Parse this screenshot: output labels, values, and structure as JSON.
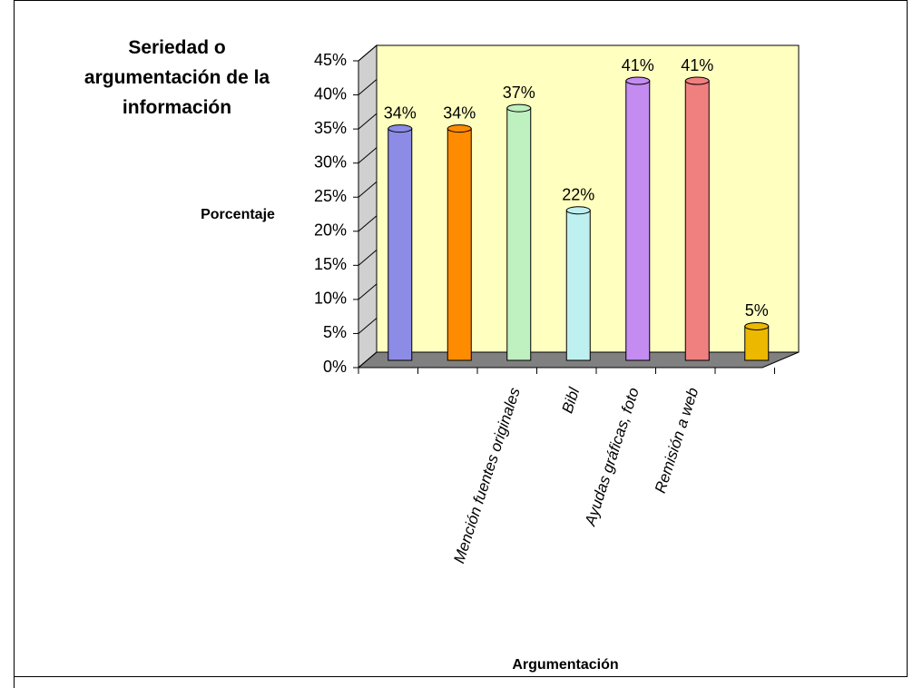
{
  "chart_data": {
    "type": "bar",
    "title": "Seriedad o argumentación de la información",
    "x_label": "Argumentación",
    "y_label": "Porcentaje",
    "categories": [
      null,
      null,
      "Mención fuentes originales",
      "Bibl",
      "Ayudas gráficas, foto",
      "Remisión a web",
      null
    ],
    "values": [
      34,
      34,
      37,
      22,
      41,
      41,
      5
    ],
    "value_labels": [
      "34%",
      "34%",
      "37%",
      "22%",
      "41%",
      "41%",
      "5%"
    ],
    "colors": [
      "#8c8ce6",
      "#ff8c00",
      "#bff0c0",
      "#bff0f0",
      "#c48cf0",
      "#f08080",
      "#ecb800"
    ],
    "ylim": [
      0,
      45
    ],
    "yticks": [
      {
        "value": 0,
        "label": "0%"
      },
      {
        "value": 5,
        "label": "5%"
      },
      {
        "value": 10,
        "label": "10%"
      },
      {
        "value": 15,
        "label": "15%"
      },
      {
        "value": 20,
        "label": "20%"
      },
      {
        "value": 25,
        "label": "25%"
      },
      {
        "value": 30,
        "label": "30%"
      },
      {
        "value": 35,
        "label": "35%"
      },
      {
        "value": 40,
        "label": "40%"
      },
      {
        "value": 45,
        "label": "45%"
      }
    ]
  }
}
